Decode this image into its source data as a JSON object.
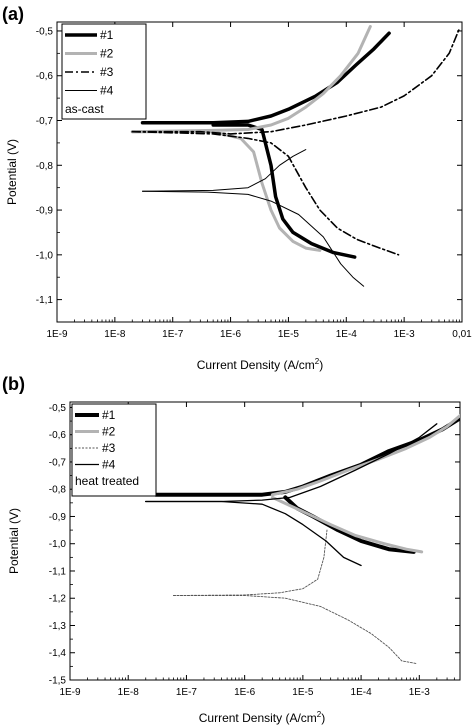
{
  "chart_data": [
    {
      "type": "line",
      "panel_label": "(a)",
      "xlabel": "Current Density (A/cm",
      "xlabel_sup": "2",
      "xlabel_tail": ")",
      "ylabel": "Potential (V)",
      "x_scale": "log",
      "xlim": [
        1e-09,
        0.01
      ],
      "ylim": [
        -1.15,
        -0.48
      ],
      "x_ticks": [
        {
          "v": 1e-09,
          "label": "1E-9"
        },
        {
          "v": 1e-08,
          "label": "1E-8"
        },
        {
          "v": 1e-07,
          "label": "1E-7"
        },
        {
          "v": 1e-06,
          "label": "1E-6"
        },
        {
          "v": 1e-05,
          "label": "1E-5"
        },
        {
          "v": 0.0001,
          "label": "1E-4"
        },
        {
          "v": 0.001,
          "label": "1E-3"
        },
        {
          "v": 0.01,
          "label": "0,01"
        }
      ],
      "y_ticks": [
        {
          "v": -0.5,
          "label": "-0,5"
        },
        {
          "v": -0.6,
          "label": "-0,6"
        },
        {
          "v": -0.7,
          "label": "-0,7"
        },
        {
          "v": -0.8,
          "label": "-0,8"
        },
        {
          "v": -0.9,
          "label": "-0,9"
        },
        {
          "v": -1.0,
          "label": "-1,0"
        },
        {
          "v": -1.1,
          "label": "-1,1"
        }
      ],
      "legend_title": "as-cast",
      "legend_position": "top-left",
      "series": [
        {
          "name": "#1",
          "color": "#000000",
          "width": 3.5,
          "dash": "",
          "anodic": [
            [
              3e-08,
              -0.705
            ],
            [
              5e-07,
              -0.705
            ],
            [
              2e-06,
              -0.702
            ],
            [
              5e-06,
              -0.69
            ],
            [
              1e-05,
              -0.675
            ],
            [
              3e-05,
              -0.645
            ],
            [
              7e-05,
              -0.615
            ],
            [
              0.00015,
              -0.575
            ],
            [
              0.0003,
              -0.54
            ],
            [
              0.00055,
              -0.505
            ]
          ],
          "cathodic": [
            [
              5e-07,
              -0.71
            ],
            [
              2e-06,
              -0.71
            ],
            [
              3.5e-06,
              -0.72
            ],
            [
              5e-06,
              -0.8
            ],
            [
              6e-06,
              -0.87
            ],
            [
              8e-06,
              -0.92
            ],
            [
              1.2e-05,
              -0.95
            ],
            [
              2.5e-05,
              -0.975
            ],
            [
              6e-05,
              -0.995
            ],
            [
              0.00014,
              -1.005
            ]
          ]
        },
        {
          "name": "#2",
          "color": "#b3b3b3",
          "width": 3,
          "dash": "",
          "anodic": [
            [
              2e-08,
              -0.725
            ],
            [
              5e-07,
              -0.722
            ],
            [
              2e-06,
              -0.72
            ],
            [
              5e-06,
              -0.71
            ],
            [
              1e-05,
              -0.695
            ],
            [
              2e-05,
              -0.67
            ],
            [
              4e-05,
              -0.64
            ],
            [
              8e-05,
              -0.6
            ],
            [
              0.00016,
              -0.55
            ],
            [
              0.00026,
              -0.49
            ]
          ],
          "cathodic": [
            [
              2e-08,
              -0.725
            ],
            [
              5e-07,
              -0.725
            ],
            [
              1.5e-06,
              -0.74
            ],
            [
              2.5e-06,
              -0.77
            ],
            [
              3.5e-06,
              -0.84
            ],
            [
              5e-06,
              -0.9
            ],
            [
              7e-06,
              -0.94
            ],
            [
              1.2e-05,
              -0.97
            ],
            [
              2e-05,
              -0.985
            ],
            [
              3.5e-05,
              -0.99
            ]
          ]
        },
        {
          "name": "#3",
          "color": "#000000",
          "width": 1.6,
          "dash": "8,3,2,3",
          "anodic": [
            [
              2e-08,
              -0.725
            ],
            [
              3e-07,
              -0.725
            ],
            [
              1e-06,
              -0.73
            ],
            [
              5e-06,
              -0.725
            ],
            [
              2e-05,
              -0.71
            ],
            [
              0.0001,
              -0.69
            ],
            [
              0.0004,
              -0.67
            ],
            [
              0.001,
              -0.645
            ],
            [
              0.003,
              -0.6
            ],
            [
              0.006,
              -0.55
            ],
            [
              0.009,
              -0.495
            ]
          ],
          "cathodic": [
            [
              2e-08,
              -0.725
            ],
            [
              5e-07,
              -0.73
            ],
            [
              2e-06,
              -0.74
            ],
            [
              5e-06,
              -0.75
            ],
            [
              1e-05,
              -0.78
            ],
            [
              2e-05,
              -0.85
            ],
            [
              3.5e-05,
              -0.9
            ],
            [
              7e-05,
              -0.94
            ],
            [
              0.00015,
              -0.965
            ],
            [
              0.0003,
              -0.98
            ],
            [
              0.0008,
              -1.0
            ]
          ]
        },
        {
          "name": "#4",
          "color": "#000000",
          "width": 1,
          "dash": "",
          "anodic": [
            [
              3e-08,
              -0.858
            ],
            [
              5e-07,
              -0.856
            ],
            [
              2e-06,
              -0.85
            ],
            [
              4e-06,
              -0.83
            ],
            [
              7e-06,
              -0.8
            ],
            [
              1.2e-05,
              -0.78
            ],
            [
              2e-05,
              -0.765
            ]
          ],
          "cathodic": [
            [
              3e-08,
              -0.858
            ],
            [
              4e-07,
              -0.86
            ],
            [
              2e-06,
              -0.865
            ],
            [
              5e-06,
              -0.88
            ],
            [
              1.5e-05,
              -0.91
            ],
            [
              4e-05,
              -0.96
            ],
            [
              8e-05,
              -1.02
            ],
            [
              0.00013,
              -1.05
            ],
            [
              0.0002,
              -1.07
            ]
          ]
        }
      ]
    },
    {
      "type": "line",
      "panel_label": "(b)",
      "xlabel": "Current Density (A/cm",
      "xlabel_sup": "2",
      "xlabel_tail": ")",
      "ylabel": "Potential (V)",
      "x_scale": "log",
      "xlim": [
        1e-09,
        0.005
      ],
      "ylim": [
        -1.5,
        -0.48
      ],
      "x_ticks": [
        {
          "v": 1e-09,
          "label": "1E-9"
        },
        {
          "v": 1e-08,
          "label": "1E-8"
        },
        {
          "v": 1e-07,
          "label": "1E-7"
        },
        {
          "v": 1e-06,
          "label": "1E-6"
        },
        {
          "v": 1e-05,
          "label": "1E-5"
        },
        {
          "v": 0.0001,
          "label": "1E-4"
        },
        {
          "v": 0.001,
          "label": "1E-3"
        }
      ],
      "y_ticks": [
        {
          "v": -0.5,
          "label": "-0,5"
        },
        {
          "v": -0.6,
          "label": "-0,6"
        },
        {
          "v": -0.7,
          "label": "-0,7"
        },
        {
          "v": -0.8,
          "label": "-0,8"
        },
        {
          "v": -0.9,
          "label": "-0,9"
        },
        {
          "v": -1.0,
          "label": "-1,0"
        },
        {
          "v": -1.1,
          "label": "-1,1"
        },
        {
          "v": -1.2,
          "label": "-1,2"
        },
        {
          "v": -1.3,
          "label": "-1,3"
        },
        {
          "v": -1.4,
          "label": "-1,4"
        },
        {
          "v": -1.5,
          "label": "-1,5"
        }
      ],
      "legend_title": "heat treated",
      "legend_position": "top-left",
      "series": [
        {
          "name": "#1",
          "color": "#000000",
          "width": 4,
          "dash": "",
          "anodic": [
            [
              3e-08,
              -0.82
            ],
            [
              5e-07,
              -0.82
            ],
            [
              2e-06,
              -0.82
            ],
            [
              5e-06,
              -0.81
            ],
            [
              1e-05,
              -0.79
            ],
            [
              3e-05,
              -0.75
            ],
            [
              0.0001,
              -0.71
            ],
            [
              0.0003,
              -0.66
            ],
            [
              0.001,
              -0.62
            ],
            [
              0.0025,
              -0.58
            ],
            [
              0.005,
              -0.54
            ]
          ],
          "cathodic": [
            [
              5e-06,
              -0.83
            ],
            [
              8e-06,
              -0.87
            ],
            [
              1.5e-05,
              -0.9
            ],
            [
              4e-05,
              -0.95
            ],
            [
              0.0001,
              -0.99
            ],
            [
              0.0003,
              -1.02
            ],
            [
              0.0008,
              -1.03
            ]
          ]
        },
        {
          "name": "#2",
          "color": "#b3b3b3",
          "width": 3,
          "dash": "",
          "anodic": [
            [
              3e-06,
              -0.82
            ],
            [
              8e-06,
              -0.8
            ],
            [
              2e-05,
              -0.77
            ],
            [
              6e-05,
              -0.73
            ],
            [
              0.0002,
              -0.69
            ],
            [
              0.0006,
              -0.65
            ],
            [
              0.0015,
              -0.61
            ],
            [
              0.003,
              -0.57
            ],
            [
              0.005,
              -0.53
            ]
          ],
          "cathodic": [
            [
              3e-06,
              -0.83
            ],
            [
              6e-06,
              -0.86
            ],
            [
              1.2e-05,
              -0.89
            ],
            [
              3e-05,
              -0.93
            ],
            [
              8e-05,
              -0.97
            ],
            [
              0.00025,
              -1.0
            ],
            [
              0.0006,
              -1.02
            ],
            [
              0.0011,
              -1.03
            ]
          ]
        },
        {
          "name": "#3",
          "color": "#555555",
          "width": 0.9,
          "dash": "2,1.5",
          "anodic": [
            [
              6e-08,
              -1.19
            ],
            [
              1e-06,
              -1.188
            ],
            [
              4e-06,
              -1.18
            ],
            [
              1e-05,
              -1.165
            ],
            [
              1.8e-05,
              -1.13
            ],
            [
              2.3e-05,
              -1.05
            ],
            [
              2.6e-05,
              -0.95
            ]
          ],
          "cathodic": [
            [
              6e-08,
              -1.19
            ],
            [
              1e-06,
              -1.19
            ],
            [
              5e-06,
              -1.2
            ],
            [
              2e-05,
              -1.23
            ],
            [
              6e-05,
              -1.28
            ],
            [
              0.00015,
              -1.33
            ],
            [
              0.0003,
              -1.38
            ],
            [
              0.0005,
              -1.43
            ],
            [
              0.0009,
              -1.44
            ]
          ]
        },
        {
          "name": "#4",
          "color": "#000000",
          "width": 1.3,
          "dash": "",
          "anodic": [
            [
              2e-08,
              -0.845
            ],
            [
              4e-07,
              -0.845
            ],
            [
              2e-06,
              -0.84
            ],
            [
              6e-06,
              -0.83
            ],
            [
              2e-05,
              -0.79
            ],
            [
              8e-05,
              -0.73
            ],
            [
              0.0003,
              -0.67
            ],
            [
              0.001,
              -0.61
            ],
            [
              0.002,
              -0.56
            ]
          ],
          "cathodic": [
            [
              2e-08,
              -0.845
            ],
            [
              4e-07,
              -0.845
            ],
            [
              2e-06,
              -0.855
            ],
            [
              5e-06,
              -0.89
            ],
            [
              1e-05,
              -0.93
            ],
            [
              2.5e-05,
              -0.99
            ],
            [
              5e-05,
              -1.05
            ],
            [
              0.0001,
              -1.08
            ]
          ]
        }
      ]
    }
  ]
}
